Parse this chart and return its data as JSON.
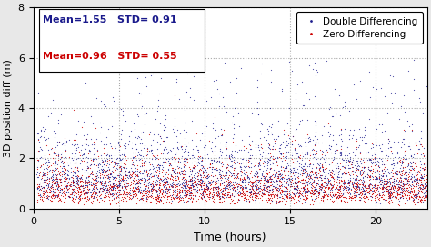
{
  "title": "",
  "xlabel": "Time (hours)",
  "ylabel": "3D position diff (m)",
  "xlim": [
    0,
    23
  ],
  "ylim": [
    0,
    8
  ],
  "xticks": [
    0,
    5,
    10,
    15,
    20
  ],
  "yticks": [
    0,
    2,
    4,
    6,
    8
  ],
  "dd_mean": 1.55,
  "dd_std": 0.91,
  "zd_mean": 0.96,
  "zd_std": 0.55,
  "dd_color": "#1a1a8c",
  "zd_color": "#cc0000",
  "dd_label": "Double Differencing",
  "zd_label": "Zero Differencing",
  "n_dd": 3000,
  "n_zd": 3000,
  "time_max": 23,
  "background_color": "#ffffff",
  "grid_color": "#aaaaaa",
  "fig_bg": "#e8e8e8"
}
